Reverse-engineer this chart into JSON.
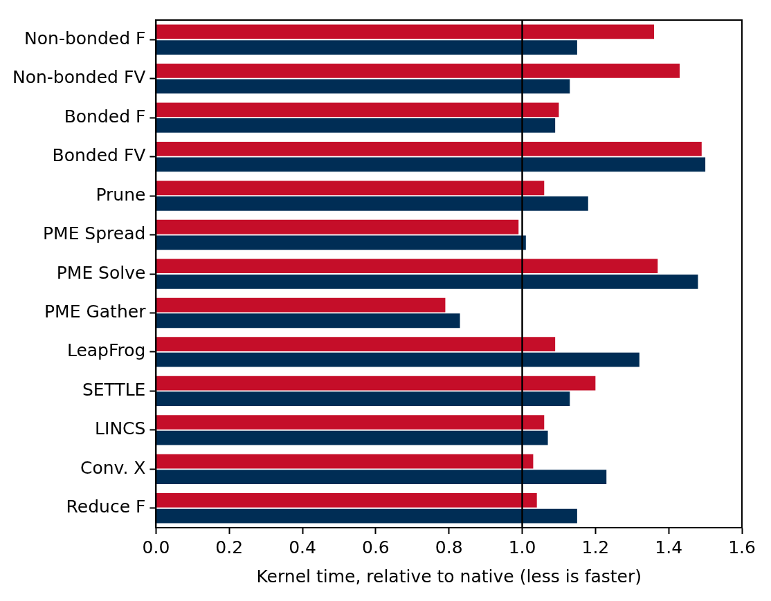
{
  "chart_data": {
    "type": "bar",
    "orientation": "horizontal",
    "xlabel": "Kernel time, relative to native (less is faster)",
    "categories": [
      "Non-bonded F",
      "Non-bonded FV",
      "Bonded F",
      "Bonded FV",
      "Prune",
      "PME Spread",
      "PME Solve",
      "PME Gather",
      "LeapFrog",
      "SETTLE",
      "LINCS",
      "Conv. X",
      "Reduce F"
    ],
    "series": [
      {
        "color": "#c50e29",
        "values": [
          1.36,
          1.43,
          1.1,
          1.49,
          1.06,
          0.99,
          1.37,
          0.79,
          1.09,
          1.2,
          1.06,
          1.03,
          1.04
        ]
      },
      {
        "color": "#002d55",
        "values": [
          1.15,
          1.13,
          1.09,
          1.5,
          1.18,
          1.01,
          1.48,
          0.83,
          1.32,
          1.13,
          1.07,
          1.23,
          1.15
        ]
      }
    ],
    "xlim": [
      0,
      1.6
    ],
    "xticks": [
      {
        "value": 0,
        "label": "0.0"
      },
      0.2,
      0.4,
      0.6,
      0.8,
      {
        "value": 1,
        "label": "1.0"
      },
      1.2,
      1.4,
      1.6
    ],
    "ref_lines": [
      {
        "axis": "x",
        "value": 1,
        "color": "#000000"
      }
    ],
    "grid": false,
    "legend": false
  }
}
